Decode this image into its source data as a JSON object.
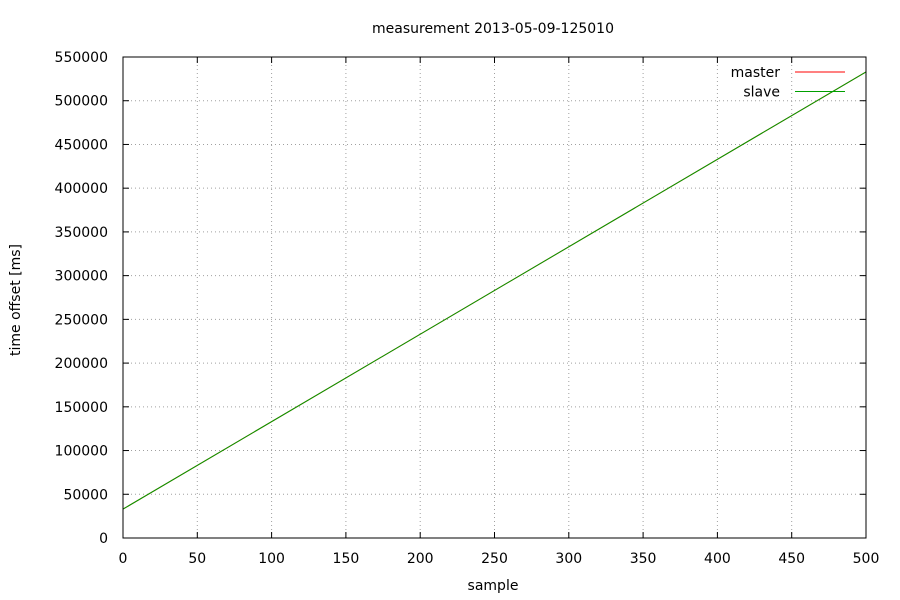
{
  "chart_data": {
    "type": "line",
    "title": "measurement 2013-05-09-125010",
    "xlabel": "sample",
    "ylabel": "time offset [ms]",
    "xlim": [
      0,
      500
    ],
    "ylim": [
      0,
      550000
    ],
    "xticks": [
      0,
      50,
      100,
      150,
      200,
      250,
      300,
      350,
      400,
      450,
      500
    ],
    "yticks": [
      0,
      50000,
      100000,
      150000,
      200000,
      250000,
      300000,
      350000,
      400000,
      450000,
      500000,
      550000
    ],
    "grid": true,
    "legend_position": "top-right",
    "series": [
      {
        "name": "master",
        "color": "#ff0000",
        "x": [
          0,
          500
        ],
        "y": [
          33000,
          533000
        ]
      },
      {
        "name": "slave",
        "color": "#00a000",
        "x": [
          0,
          500
        ],
        "y": [
          33000,
          533000
        ]
      }
    ]
  }
}
